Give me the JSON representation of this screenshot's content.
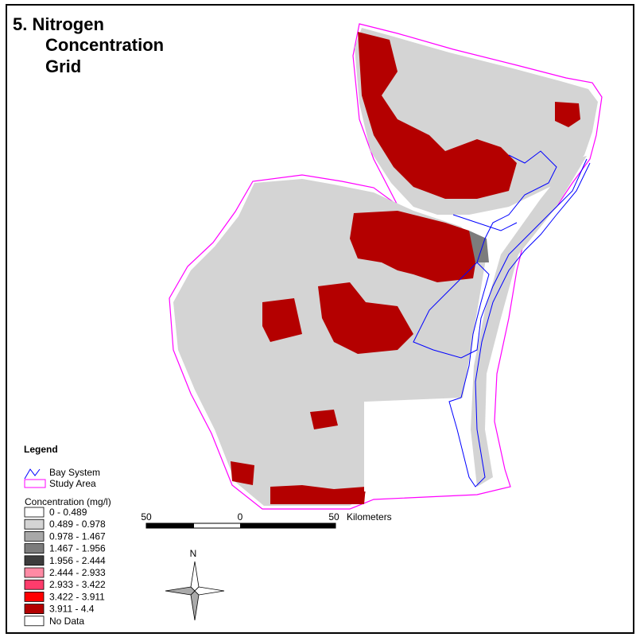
{
  "title": [
    "5.  Nitrogen",
    "Concentration",
    "Grid"
  ],
  "legend": {
    "title": "Legend",
    "items": [
      {
        "label": "Bay System",
        "color": "#0000ff"
      },
      {
        "label": "Study Area",
        "color": "#ff00ff"
      }
    ],
    "concentration_title": "Concentration (mg/l)",
    "classes": [
      {
        "label": "0 - 0.489",
        "color": "#ffffff"
      },
      {
        "label": "0.489 - 0.978",
        "color": "#d4d4d4"
      },
      {
        "label": "0.978 - 1.467",
        "color": "#a8a8a8"
      },
      {
        "label": "1.467 - 1.956",
        "color": "#7c7c7c"
      },
      {
        "label": "1.956 - 2.444",
        "color": "#3c3c3c"
      },
      {
        "label": "2.444 - 2.933",
        "color": "#ff8aa4"
      },
      {
        "label": "2.933 - 3.422",
        "color": "#ff3c6c"
      },
      {
        "label": "3.422 - 3.911",
        "color": "#ff0000"
      },
      {
        "label": "3.911 - 4.4",
        "color": "#b40000"
      },
      {
        "label": "No Data",
        "color": "#ffffff"
      }
    ]
  },
  "scale_bar": {
    "labels": [
      "50",
      "0",
      "50"
    ],
    "unit": "Kilometers"
  },
  "north_arrow": "N"
}
